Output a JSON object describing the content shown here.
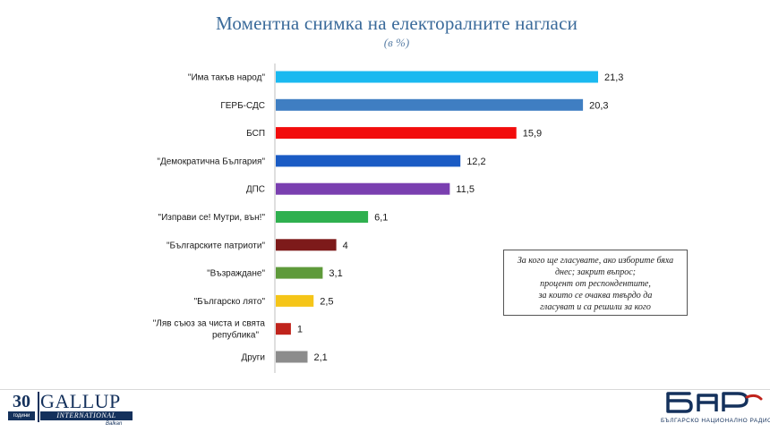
{
  "chart_data": {
    "type": "bar",
    "orientation": "horizontal",
    "title": "Моментна снимка на електоралните нагласи",
    "subtitle": "(в %)",
    "categories": [
      "\"Има такъв народ\"",
      "ГЕРБ-СДС",
      "БСП",
      "\"Демократична България\"",
      "ДПС",
      "\"Изправи се! Мутри, вън!\"",
      "\"Българските патриоти\"",
      "\"Възраждане\"",
      "\"Българско лято\"",
      "\"Ляв съюз за чиста и свята република\"",
      "Други"
    ],
    "values": [
      21.3,
      20.3,
      15.9,
      12.2,
      11.5,
      6.1,
      4,
      3.1,
      2.5,
      1,
      2.1
    ],
    "value_labels": [
      "21,3",
      "20,3",
      "15,9",
      "12,2",
      "11,5",
      "6,1",
      "4",
      "3,1",
      "2,5",
      "1",
      "2,1"
    ],
    "colors": [
      "#1ab9f0",
      "#3f7ec2",
      "#f20c0c",
      "#1a5bc4",
      "#7a3fb0",
      "#2fb04f",
      "#7d1a1a",
      "#5e9a3a",
      "#f5c518",
      "#c0241c",
      "#8c8c8c"
    ],
    "xlim": [
      0,
      24
    ],
    "grid": false,
    "legend": "none"
  },
  "note": {
    "lines": [
      "За кого ще гласувате, ако изборите бяха",
      "днес; закрит въпрос;",
      "процент от респондентите,",
      "за които се очаква твърдо да",
      "гласуват и са решили за кого"
    ]
  },
  "logos": {
    "gallup_years": "30",
    "gallup_years_sub": "години",
    "gallup_name": "GALLUP",
    "gallup_intl": "INTERNATIONAL",
    "gallup_country": "Balkan",
    "bnr_name": "БЪЛГАРСКО НАЦИОНАЛНО РАДИО"
  }
}
